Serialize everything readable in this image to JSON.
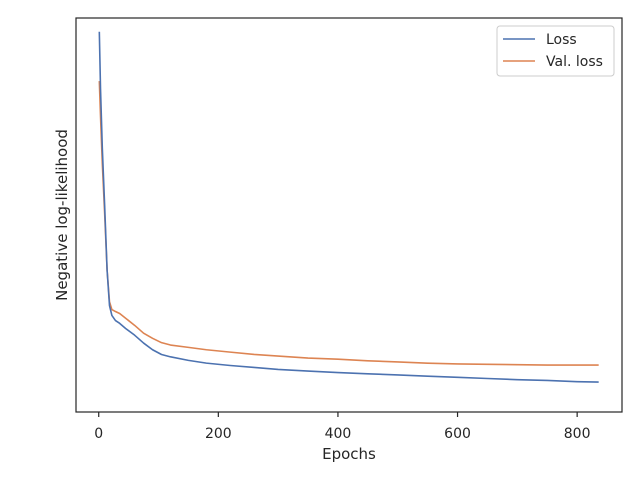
{
  "chart_data": {
    "type": "line",
    "title": "",
    "xlabel": "Epochs",
    "ylabel": "Negative log-likelihood",
    "xlim": [
      -38,
      875
    ],
    "ylim": [
      0,
      1
    ],
    "x_ticks": [
      0,
      200,
      400,
      600,
      800
    ],
    "y_ticks": [],
    "grid": false,
    "legend_position": "top-right",
    "series": [
      {
        "name": "Loss",
        "color": "#4c72b0",
        "points": [
          [
            1,
            0.965
          ],
          [
            3,
            0.82
          ],
          [
            6,
            0.67
          ],
          [
            10,
            0.52
          ],
          [
            14,
            0.36
          ],
          [
            18,
            0.27
          ],
          [
            22,
            0.245
          ],
          [
            28,
            0.232
          ],
          [
            35,
            0.225
          ],
          [
            45,
            0.212
          ],
          [
            60,
            0.195
          ],
          [
            75,
            0.175
          ],
          [
            90,
            0.158
          ],
          [
            105,
            0.146
          ],
          [
            120,
            0.14
          ],
          [
            150,
            0.131
          ],
          [
            180,
            0.124
          ],
          [
            220,
            0.118
          ],
          [
            260,
            0.113
          ],
          [
            300,
            0.108
          ],
          [
            350,
            0.104
          ],
          [
            400,
            0.1
          ],
          [
            450,
            0.097
          ],
          [
            500,
            0.094
          ],
          [
            550,
            0.091
          ],
          [
            600,
            0.088
          ],
          [
            650,
            0.085
          ],
          [
            700,
            0.082
          ],
          [
            750,
            0.08
          ],
          [
            800,
            0.077
          ],
          [
            836,
            0.076
          ]
        ]
      },
      {
        "name": "Val. loss",
        "color": "#dd8452",
        "points": [
          [
            1,
            0.84
          ],
          [
            3,
            0.75
          ],
          [
            6,
            0.63
          ],
          [
            10,
            0.5
          ],
          [
            14,
            0.36
          ],
          [
            18,
            0.28
          ],
          [
            22,
            0.26
          ],
          [
            28,
            0.255
          ],
          [
            35,
            0.25
          ],
          [
            45,
            0.238
          ],
          [
            60,
            0.22
          ],
          [
            75,
            0.2
          ],
          [
            90,
            0.187
          ],
          [
            105,
            0.176
          ],
          [
            120,
            0.17
          ],
          [
            150,
            0.164
          ],
          [
            180,
            0.158
          ],
          [
            220,
            0.152
          ],
          [
            260,
            0.146
          ],
          [
            300,
            0.142
          ],
          [
            350,
            0.137
          ],
          [
            400,
            0.134
          ],
          [
            450,
            0.13
          ],
          [
            500,
            0.127
          ],
          [
            550,
            0.124
          ],
          [
            600,
            0.122
          ],
          [
            650,
            0.121
          ],
          [
            700,
            0.12
          ],
          [
            750,
            0.119
          ],
          [
            800,
            0.119
          ],
          [
            836,
            0.119
          ]
        ]
      }
    ]
  }
}
